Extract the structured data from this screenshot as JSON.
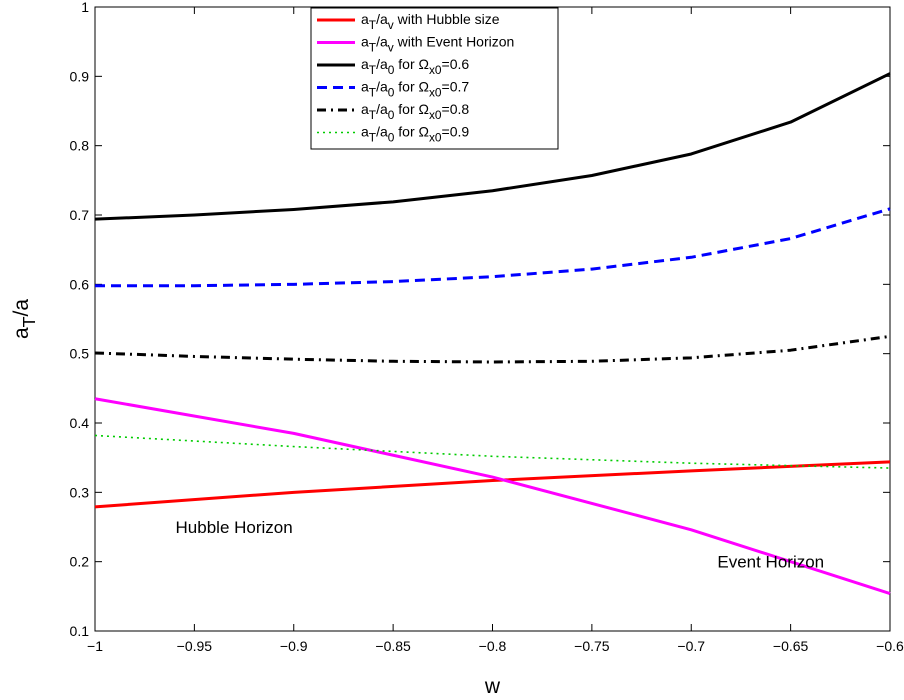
{
  "chart_data": {
    "type": "line",
    "title": "",
    "xlabel": "w",
    "ylabel": "a_T/a",
    "xlim": [
      -1,
      -0.6
    ],
    "ylim": [
      0.1,
      1
    ],
    "xticks": [
      -1,
      -0.95,
      -0.9,
      -0.85,
      -0.8,
      -0.75,
      -0.7,
      -0.65,
      -0.6
    ],
    "xtick_labels": [
      "−1",
      "−0.95",
      "−0.9",
      "−0.85",
      "−0.8",
      "−0.75",
      "−0.7",
      "−0.65",
      "−0.6"
    ],
    "yticks": [
      0.1,
      0.2,
      0.3,
      0.4,
      0.5,
      0.6,
      0.7,
      0.8,
      0.9,
      1
    ],
    "ytick_labels": [
      "0.1",
      "0.2",
      "0.3",
      "0.4",
      "0.5",
      "0.6",
      "0.7",
      "0.8",
      "0.9",
      "1"
    ],
    "grid": false,
    "legend_position": "top-center",
    "series": [
      {
        "name": "a_T/a_v with Hubble size",
        "color": "#ff0000",
        "style": "solid",
        "x": [
          -1,
          -0.9,
          -0.8,
          -0.7,
          -0.6
        ],
        "y": [
          0.279,
          0.3,
          0.317,
          0.331,
          0.344
        ]
      },
      {
        "name": "a_T/a_v with Event Horizon",
        "color": "#ff00ff",
        "style": "solid",
        "x": [
          -1,
          -0.9,
          -0.8,
          -0.7,
          -0.6
        ],
        "y": [
          0.435,
          0.385,
          0.322,
          0.246,
          0.154
        ]
      },
      {
        "name": "a_T/a_0 for Ω_x0=0.6",
        "color": "#000000",
        "style": "solid",
        "x": [
          -1,
          -0.95,
          -0.9,
          -0.85,
          -0.8,
          -0.75,
          -0.7,
          -0.65,
          -0.6
        ],
        "y": [
          0.694,
          0.7,
          0.708,
          0.719,
          0.735,
          0.757,
          0.788,
          0.834,
          0.904
        ]
      },
      {
        "name": "a_T/a_0 for Ω_x0=0.7",
        "color": "#0000ff",
        "style": "dashed",
        "x": [
          -1,
          -0.95,
          -0.9,
          -0.85,
          -0.8,
          -0.75,
          -0.7,
          -0.65,
          -0.6
        ],
        "y": [
          0.598,
          0.598,
          0.6,
          0.604,
          0.611,
          0.622,
          0.639,
          0.666,
          0.709
        ]
      },
      {
        "name": "a_T/a_0 for Ω_x0=0.8",
        "color": "#000000",
        "style": "dashdot",
        "x": [
          -1,
          -0.95,
          -0.9,
          -0.85,
          -0.8,
          -0.75,
          -0.7,
          -0.65,
          -0.6
        ],
        "y": [
          0.501,
          0.496,
          0.492,
          0.489,
          0.488,
          0.489,
          0.494,
          0.505,
          0.525
        ]
      },
      {
        "name": "a_T/a_0 for Ω_x0=0.9",
        "color": "#00cc00",
        "style": "dotted",
        "x": [
          -1,
          -0.9,
          -0.8,
          -0.7,
          -0.6
        ],
        "y": [
          0.382,
          0.366,
          0.352,
          0.342,
          0.335
        ]
      }
    ],
    "annotations": [
      {
        "text": "Hubble Horizon",
        "x": -0.93,
        "y": 0.25
      },
      {
        "text": "Event Horizon",
        "x": -0.66,
        "y": 0.2
      }
    ]
  }
}
